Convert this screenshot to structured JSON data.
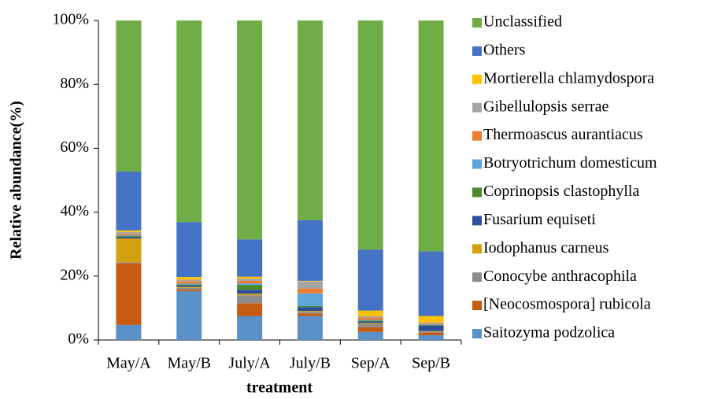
{
  "chart_data": {
    "type": "stacked_bar",
    "xlabel": "treatment",
    "ylabel": "Relative abundance(%)",
    "categories": [
      "May/A",
      "May/B",
      "July/A",
      "July/B",
      "Sep/A",
      "Sep/B"
    ],
    "ylim": [
      0,
      100
    ],
    "yticks": [
      {
        "value": 0,
        "label": "0%"
      },
      {
        "value": 20,
        "label": "20%"
      },
      {
        "value": 40,
        "label": "40%"
      },
      {
        "value": 60,
        "label": "60%"
      },
      {
        "value": 80,
        "label": "80%"
      },
      {
        "value": 100,
        "label": "100%"
      }
    ],
    "legend": "right",
    "series": [
      {
        "name": "Saitozyma podzolica",
        "color": "#5b8fc7",
        "values": [
          4.7,
          15.3,
          7.5,
          7.5,
          2.5,
          1.5
        ]
      },
      {
        "name": "[Neocosmospora] rubicola",
        "color": "#c55a11",
        "values": [
          19.3,
          0.5,
          4.0,
          0.8,
          1.5,
          0.8
        ]
      },
      {
        "name": "Conocybe anthracophila",
        "color": "#8c8c8c",
        "values": [
          0.3,
          0.5,
          2.5,
          0.5,
          1.0,
          0.3
        ]
      },
      {
        "name": "Iodophanus carneus",
        "color": "#d4a00f",
        "values": [
          7.5,
          0.3,
          0.5,
          0.3,
          0.3,
          0.2
        ]
      },
      {
        "name": "Fusarium equiseti",
        "color": "#2e4f9a",
        "values": [
          0.5,
          0.5,
          1.2,
          1.2,
          0.5,
          1.7
        ]
      },
      {
        "name": "Coprinopsis clastophylla",
        "color": "#4a8a2a",
        "values": [
          0.3,
          0.3,
          1.5,
          0.3,
          0.3,
          0.2
        ]
      },
      {
        "name": "Botryotrichum domesticum",
        "color": "#5ea5dc",
        "values": [
          0.3,
          0.3,
          0.5,
          4.0,
          0.2,
          0.2
        ]
      },
      {
        "name": "Thermoascus aurantiacus",
        "color": "#ed7d31",
        "values": [
          0.4,
          0.7,
          0.8,
          1.5,
          0.7,
          0.3
        ]
      },
      {
        "name": "Gibellulopsis serrae",
        "color": "#a5a5a5",
        "values": [
          0.5,
          0.5,
          0.7,
          2.2,
          0.5,
          0.3
        ]
      },
      {
        "name": "Mortierella chlamydospora",
        "color": "#ffc000",
        "values": [
          0.5,
          0.8,
          0.6,
          0.2,
          1.7,
          2.0
        ]
      },
      {
        "name": "Others",
        "color": "#4472c4",
        "values": [
          18.4,
          17.2,
          11.7,
          19.0,
          19.1,
          20.2
        ]
      },
      {
        "name": "Unclassified",
        "color": "#70ad47",
        "values": [
          47.3,
          63.1,
          68.5,
          62.5,
          71.7,
          72.3
        ]
      }
    ]
  }
}
